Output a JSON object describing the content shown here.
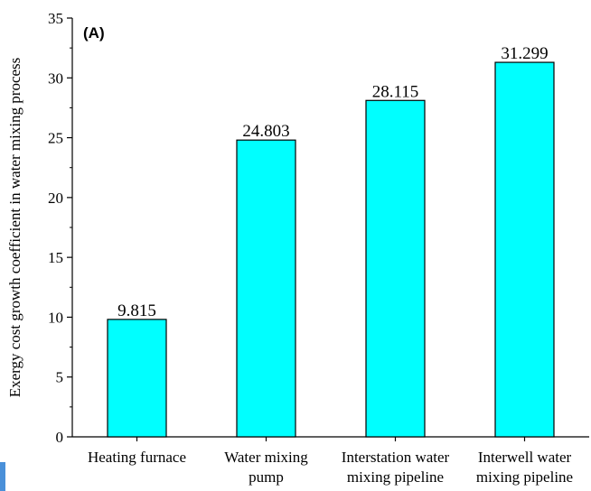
{
  "chart_data": {
    "type": "bar",
    "panel_label": "(A)",
    "title": "",
    "xlabel": "",
    "ylabel": "Exergy cost growth coefficient in water mixing process",
    "categories": [
      [
        "Heating furnace"
      ],
      [
        "Water mixing",
        "pump"
      ],
      [
        "Interstation water",
        "mixing pipeline"
      ],
      [
        "Interwell water",
        "mixing pipeline"
      ]
    ],
    "values": [
      9.815,
      24.803,
      28.115,
      31.299
    ],
    "value_labels": [
      "9.815",
      "24.803",
      "28.115",
      "31.299"
    ],
    "ylim": [
      0,
      35
    ],
    "yticks": [
      0,
      5,
      10,
      15,
      20,
      25,
      30,
      35
    ],
    "grid": false,
    "legend": "none",
    "bar_color": "#00ffff",
    "bar_edge_color": "#000000"
  }
}
